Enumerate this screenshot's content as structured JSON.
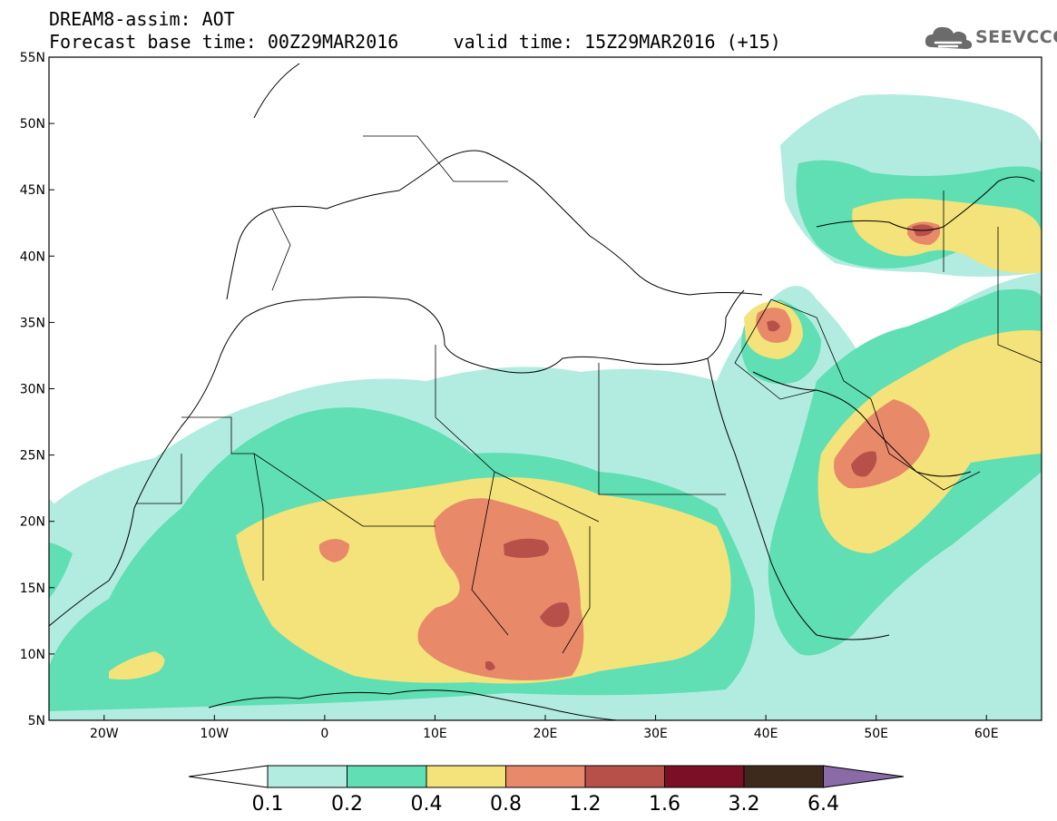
{
  "header": {
    "title": "DREAM8-assim: AOT",
    "base_label": "Forecast base time:",
    "base_time": "00Z29MAR2016",
    "valid_label": "valid time:",
    "valid_time": "15Z29MAR2016 (+15)"
  },
  "logo": {
    "text": "SEEVCCC",
    "icon": "cloud-icon"
  },
  "map": {
    "lon_range": [
      -25,
      65
    ],
    "lat_range": [
      5,
      55
    ],
    "lat_ticks": [
      "5N",
      "10N",
      "15N",
      "20N",
      "25N",
      "30N",
      "35N",
      "40N",
      "45N",
      "50N",
      "55N"
    ],
    "lon_ticks": [
      "20W",
      "10W",
      "0",
      "10E",
      "20E",
      "30E",
      "40E",
      "50E",
      "60E"
    ]
  },
  "colorbar": {
    "labels": [
      "0.1",
      "0.2",
      "0.4",
      "0.8",
      "1.2",
      "1.6",
      "3.2",
      "6.4"
    ],
    "colors": [
      "#b2ece0",
      "#5fdfb3",
      "#f4e27a",
      "#e8896a",
      "#b8504a",
      "#7a0f25",
      "#3e2a1d"
    ],
    "under_color": "#ffffff",
    "over_color": "#8a6ba8"
  }
}
